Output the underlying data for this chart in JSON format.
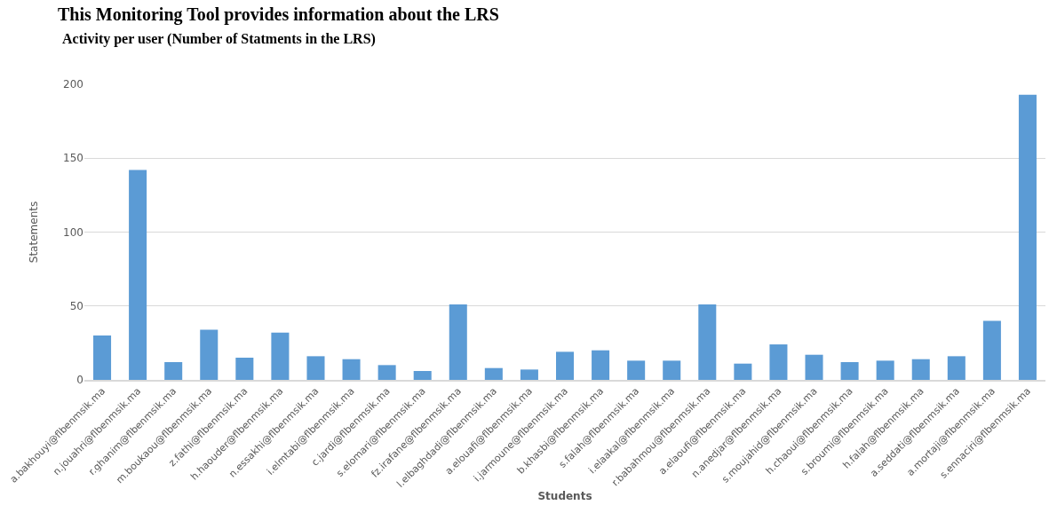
{
  "chart_data": {
    "type": "bar",
    "title": "This Monitoring Tool provides information about the LRS",
    "subtitle": "Activity per user (Number of Statments in the LRS)",
    "xlabel": "Students",
    "ylabel": "Statements",
    "categories": [
      "a.bakhouyi@flbenmsik.ma",
      "n.jouahri@flbenmsik.ma",
      "r.ghanim@flbenmsik.ma",
      "m.boukaou@flbenmsik.ma",
      "z.fathi@flbenmsik.ma",
      "h.haouder@flbenmsik.ma",
      "n.essakhi@flbenmsik.ma",
      "i.elmtabi@flbenmsik.ma",
      "c.jardi@flbenmsik.ma",
      "s.elomari@flbenmsik.ma",
      "fz.irafane@flbenmsik.ma",
      "l.elbaghdadi@flbenmsik.ma",
      "a.elouafi@flbenmsik.ma",
      "i.jarmoune@flbenmsik.ma",
      "b.khasbi@flbenmsik.ma",
      "s.falah@flbenmsik.ma",
      "i.elaakal@flbenmsik.ma",
      "r.babahmou@flbenmsik.ma",
      "a.elaoufi@flbenmsik.ma",
      "n.anedjar@flbenmsik.ma",
      "s.moujahid@flbenmsik.ma",
      "h.chaoui@flbenmsik.ma",
      "s.broumi@flbenmsik.ma",
      "h.falah@flbenmsik.ma",
      "a.seddati@flbenmsik.ma",
      "a.mortaji@flbenmsik.ma",
      "s.ennaciri@flbenmsik.ma"
    ],
    "values": [
      30,
      142,
      12,
      34,
      15,
      32,
      16,
      14,
      10,
      6,
      51,
      8,
      7,
      19,
      20,
      13,
      13,
      51,
      11,
      24,
      17,
      12,
      13,
      14,
      16,
      40,
      193
    ],
    "color": "#5b9bd5",
    "ylim": [
      0,
      200
    ],
    "yticks": [
      0,
      50,
      100,
      150,
      200
    ],
    "grid": "y"
  }
}
